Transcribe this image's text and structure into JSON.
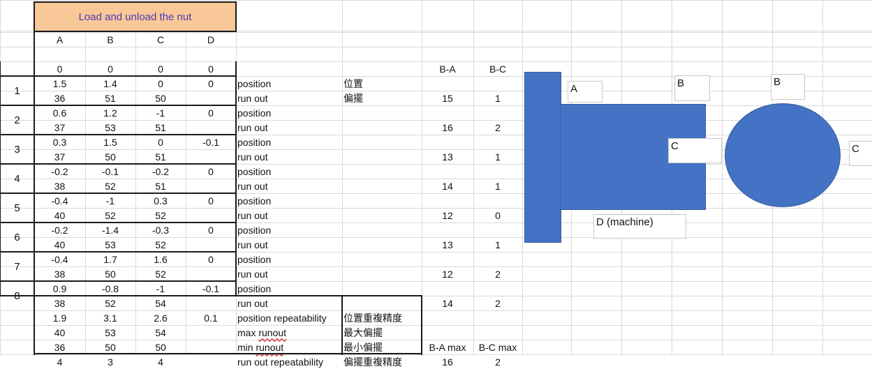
{
  "sheet": {
    "title": "Load and unload the nut",
    "col_headers": [
      "A",
      "B",
      "C",
      "D"
    ],
    "initial_row": [
      "0",
      "0",
      "0",
      "0"
    ],
    "side_headers": {
      "ba": "B-A",
      "bc": "B-C",
      "ba_max": "B-A max",
      "bc_max": "B-C max"
    },
    "label_position": "position",
    "label_runout": "run out",
    "cjk_position": "位置",
    "cjk_runout": "偏擺",
    "groups": [
      {
        "num": "1",
        "pos": [
          "1.5",
          "1.4",
          "0",
          "0"
        ],
        "run": [
          "36",
          "51",
          "50",
          ""
        ],
        "ba": "15",
        "bc": "1"
      },
      {
        "num": "2",
        "pos": [
          "0.6",
          "1.2",
          "-1",
          "0"
        ],
        "run": [
          "37",
          "53",
          "51",
          ""
        ],
        "ba": "16",
        "bc": "2"
      },
      {
        "num": "3",
        "pos": [
          "0.3",
          "1.5",
          "0",
          "-0.1"
        ],
        "run": [
          "37",
          "50",
          "51",
          ""
        ],
        "ba": "13",
        "bc": "1"
      },
      {
        "num": "4",
        "pos": [
          "-0.2",
          "-0.1",
          "-0.2",
          "0"
        ],
        "run": [
          "38",
          "52",
          "51",
          ""
        ],
        "ba": "14",
        "bc": "1"
      },
      {
        "num": "5",
        "pos": [
          "-0.4",
          "-1",
          "0.3",
          "0"
        ],
        "run": [
          "40",
          "52",
          "52",
          ""
        ],
        "ba": "12",
        "bc": "0"
      },
      {
        "num": "6",
        "pos": [
          "-0.2",
          "-1.4",
          "-0.3",
          "0"
        ],
        "run": [
          "40",
          "53",
          "52",
          ""
        ],
        "ba": "13",
        "bc": "1"
      },
      {
        "num": "7",
        "pos": [
          "-0.4",
          "1.7",
          "1.6",
          "0"
        ],
        "run": [
          "38",
          "50",
          "52",
          ""
        ],
        "ba": "12",
        "bc": "2"
      },
      {
        "num": "8",
        "pos": [
          "0.9",
          "-0.8",
          "-1",
          "-0.1"
        ],
        "run": [
          "38",
          "52",
          "54",
          ""
        ],
        "ba": "14",
        "bc": "2"
      }
    ],
    "summary": [
      {
        "vals": [
          "1.9",
          "3.1",
          "2.6",
          "0.1"
        ],
        "label": "position repeatability",
        "label_typo": "",
        "cjk": "位置重複精度",
        "ba": "",
        "bc": ""
      },
      {
        "vals": [
          "40",
          "53",
          "54",
          ""
        ],
        "label": "max ",
        "label_typo": "runout",
        "cjk": "最大偏擺",
        "ba": "",
        "bc": ""
      },
      {
        "vals": [
          "36",
          "50",
          "50",
          ""
        ],
        "label": "min ",
        "label_typo": "runout",
        "cjk": "最小偏擺",
        "ba": "B-A max",
        "bc": "B-C max"
      },
      {
        "vals": [
          "4",
          "3",
          "4",
          ""
        ],
        "label": "run out repeatability",
        "label_typo": "",
        "cjk": "偏擺重複精度",
        "ba": "16",
        "bc": "2"
      }
    ]
  },
  "diagram": {
    "label_a": "A",
    "label_b_side": "B",
    "label_c_side": "C",
    "label_d": "D (machine)",
    "label_b_front": "B",
    "label_c_front": "C",
    "shape_color": "#4472c4"
  }
}
